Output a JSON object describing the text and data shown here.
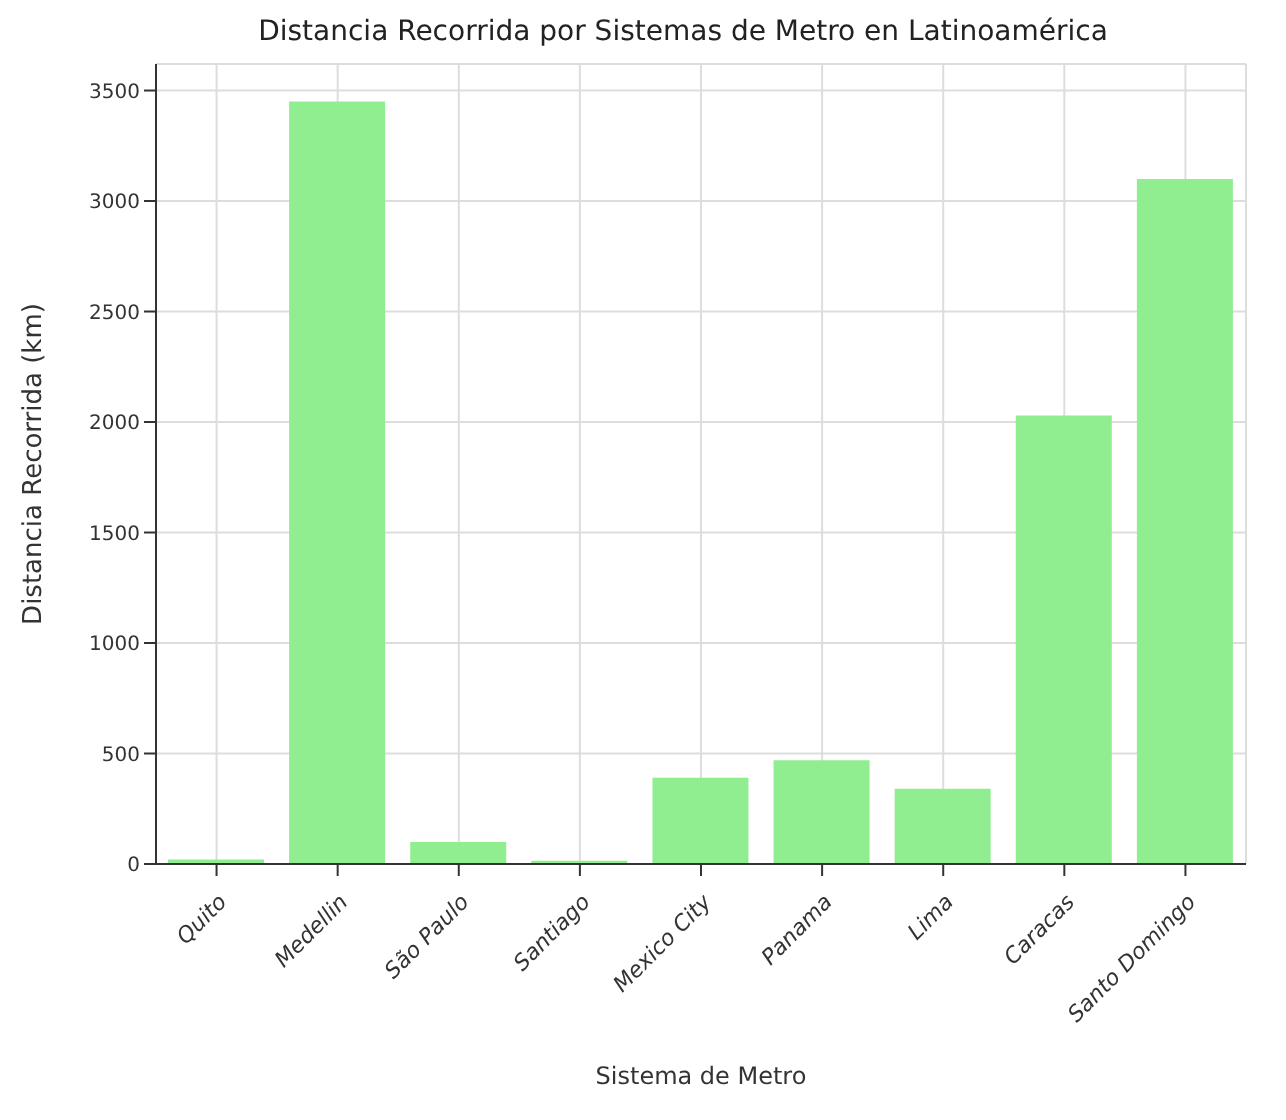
{
  "chart_data": {
    "type": "bar",
    "title": "Distancia Recorrida por Sistemas de Metro en Latinoamérica",
    "xlabel": "Sistema de Metro",
    "ylabel": "Distancia Recorrida (km)",
    "categories": [
      "Quito",
      "Medellin",
      "São Paulo",
      "Santiago",
      "Mexico City",
      "Panama",
      "Lima",
      "Caracas",
      "Santo Domingo"
    ],
    "values": [
      20,
      3450,
      100,
      15,
      390,
      470,
      340,
      2030,
      3100
    ],
    "color": "#90ee90",
    "ylim": [
      0,
      3620
    ],
    "yticks": [
      0,
      500,
      1000,
      1500,
      2000,
      2500,
      3000,
      3500
    ],
    "grid": true
  }
}
